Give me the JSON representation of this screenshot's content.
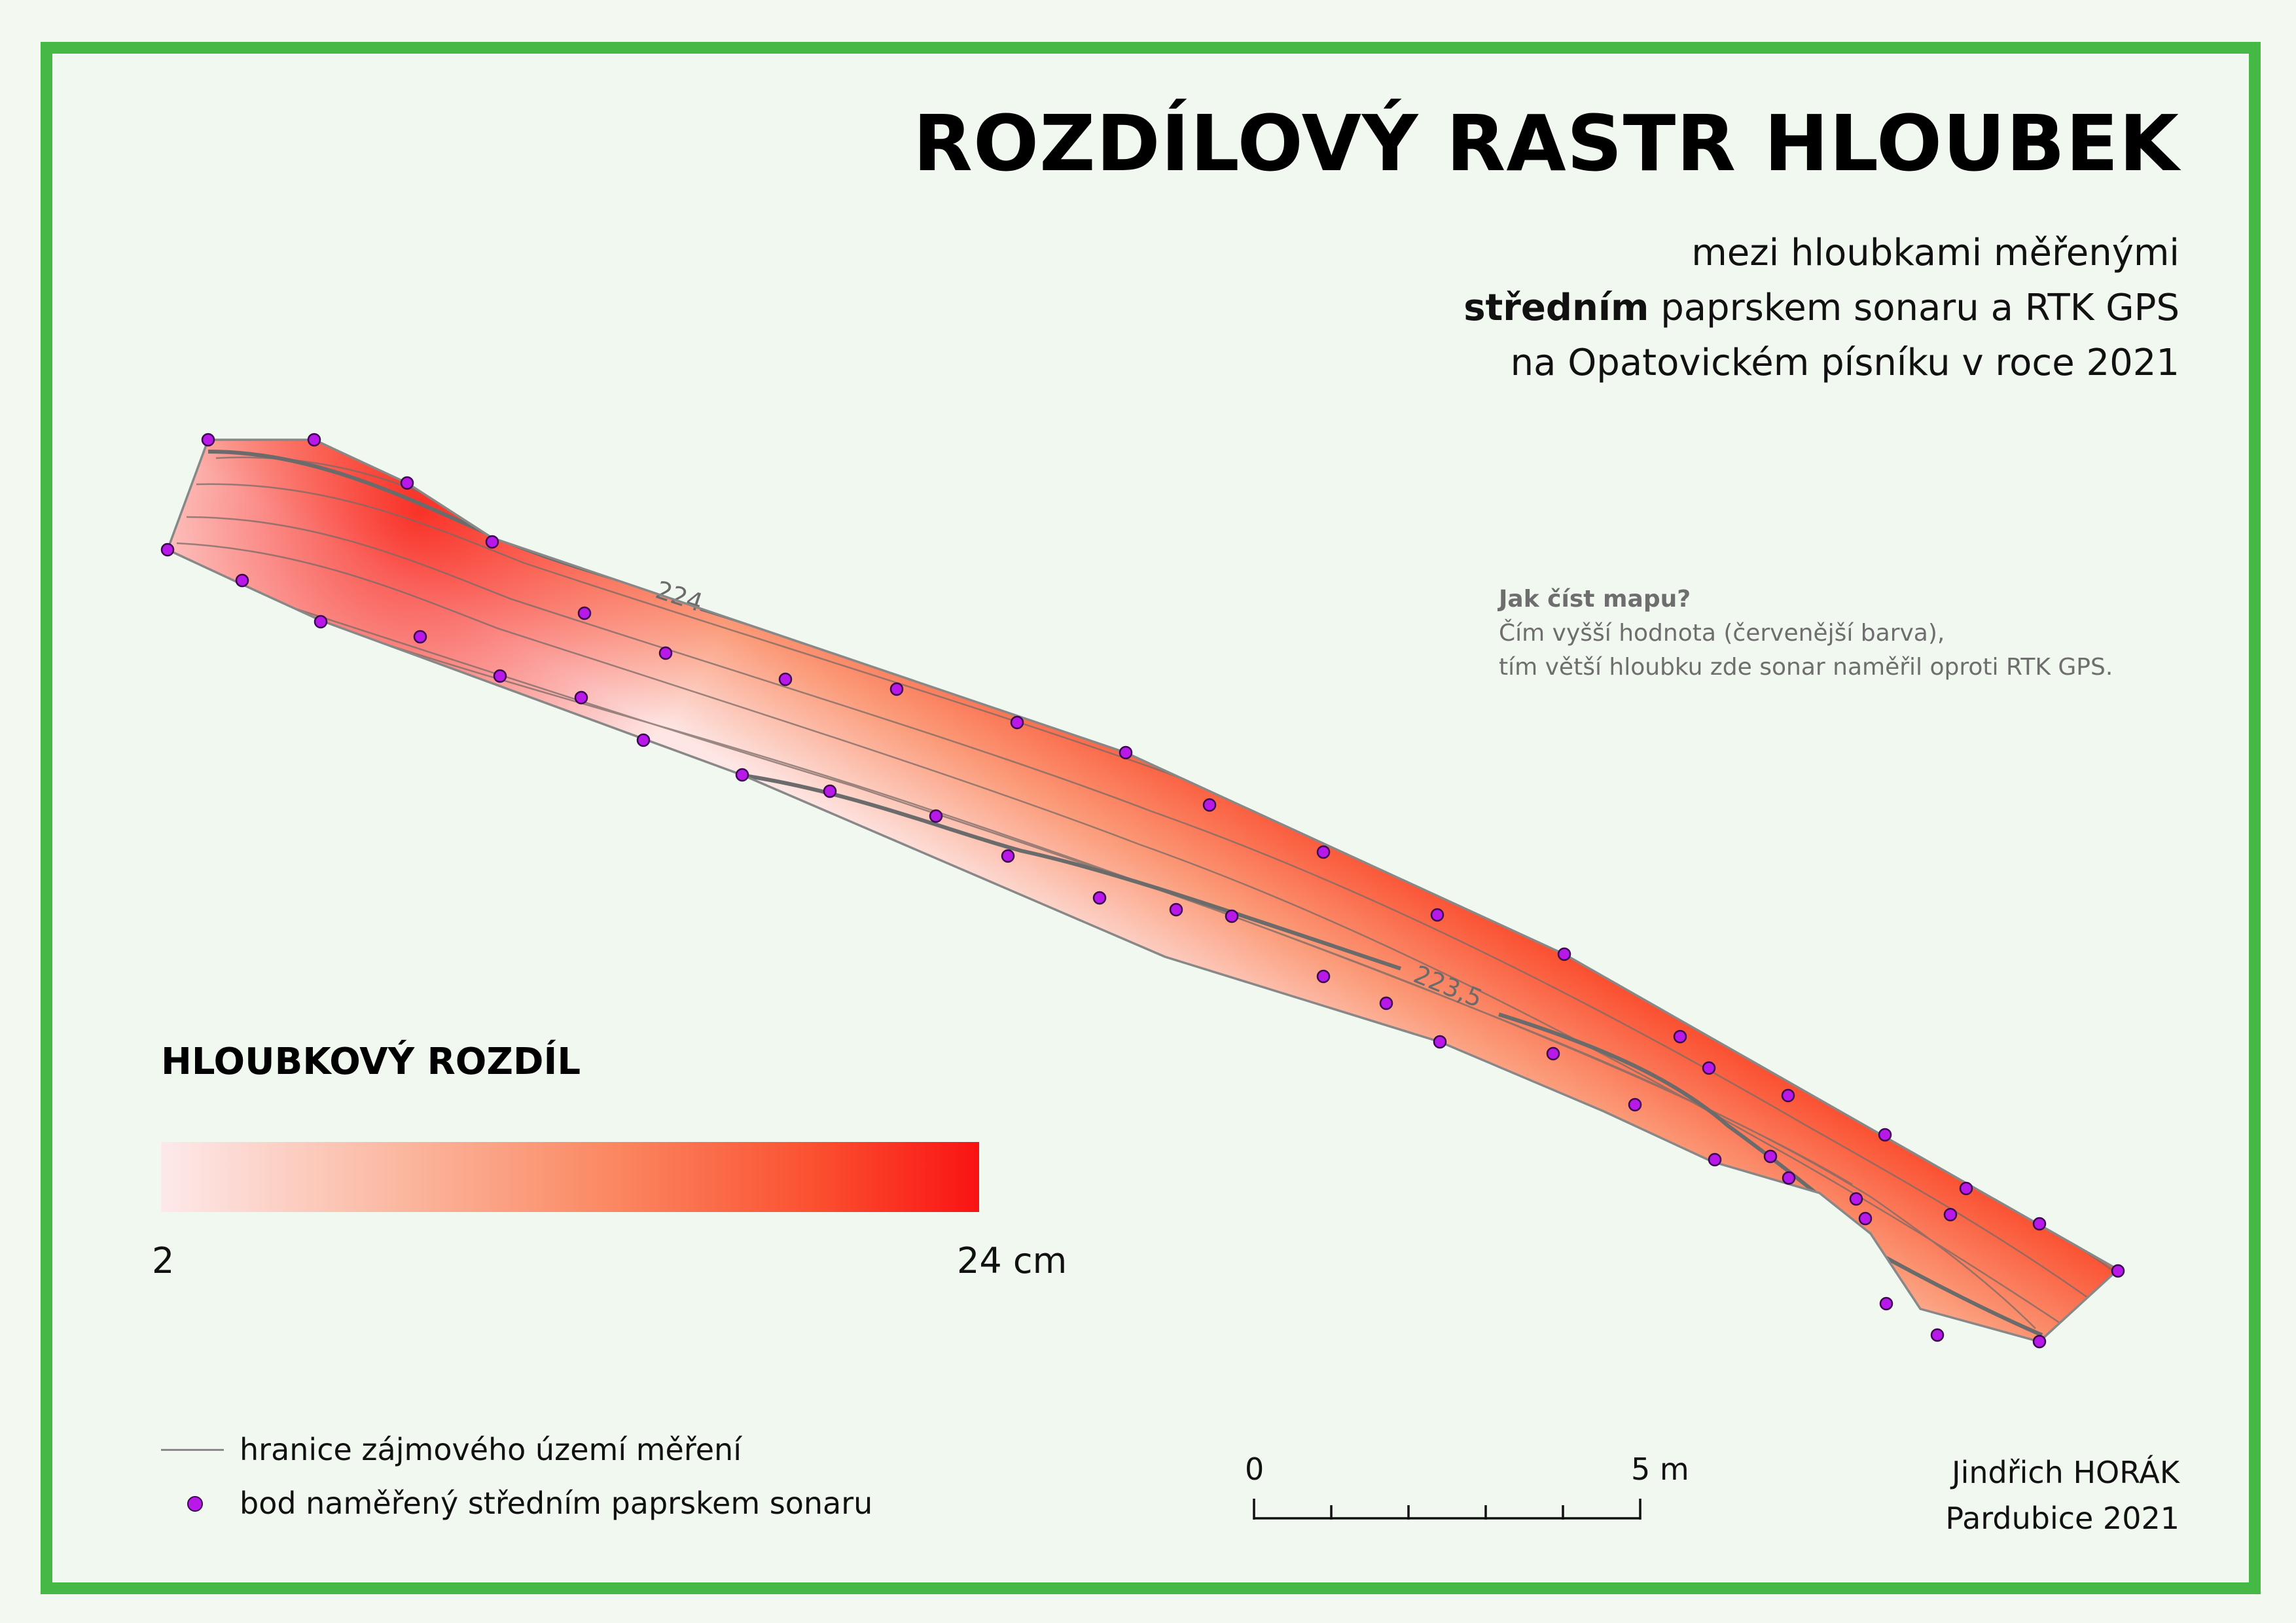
{
  "map": {
    "title": "ROZDÍLOVÝ RASTR HLOUBEK",
    "subtitle_line1": "mezi hloubkami měřenými",
    "subtitle_line2_bold": "středním",
    "subtitle_line2_rest": " paprskem sonaru a RTK GPS",
    "subtitle_line3": "na Opatovickém písníku v roce 2021"
  },
  "howto": {
    "question": "Jak číst mapu?",
    "line1": "Čím vyšší hodnota (červenější barva),",
    "line2": "tím větší hloubku zde sonar naměřil oproti RTK GPS."
  },
  "contours": {
    "label_a": "224",
    "label_b": "223,5"
  },
  "legend": {
    "title": "HLOUBKOVÝ ROZDÍL",
    "min_label": "2",
    "max_label": "24 cm",
    "boundary_label": "hranice zájmového území měření",
    "point_label": "bod naměřený středním paprskem sonaru"
  },
  "scalebar": {
    "zero_label": "0",
    "max_label": "5 m"
  },
  "author": {
    "name": "Jindřich HORÁK",
    "place_year": "Pardubice 2021"
  },
  "colors": {
    "frame": "#45b845",
    "low": "#fde9ea",
    "high": "#f91313",
    "point": "#b818e8",
    "boundary": "#8a8a8a"
  }
}
